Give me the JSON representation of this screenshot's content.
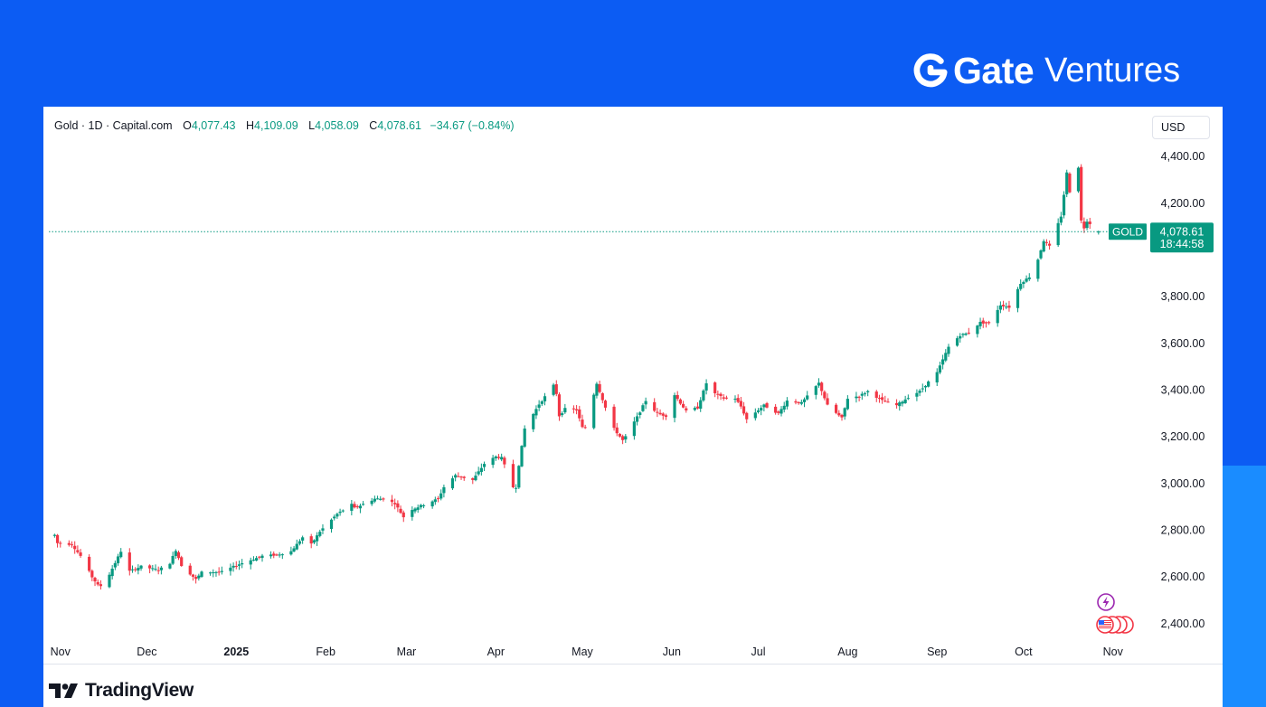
{
  "brand": {
    "name": "Gate",
    "suffix": "Ventures",
    "color": "#ffffff",
    "background": "#0c5cf3"
  },
  "legend": {
    "symbol": "Gold · 1D · Capital.com",
    "open_label": "O",
    "open": "4,077.43",
    "high_label": "H",
    "high": "4,109.09",
    "low_label": "L",
    "low": "4,058.09",
    "close_label": "C",
    "close": "4,078.61",
    "change": "−34.67 (−0.84%)"
  },
  "currency_button": "USD",
  "price_tag": {
    "label": "GOLD",
    "price": "4,078.61",
    "countdown": "18:44:58"
  },
  "logo": {
    "name": "TradingView"
  },
  "icons": {
    "flash": "lightning-event-icon",
    "flags": "us-economic-events-icon"
  },
  "colors": {
    "up": "#089981",
    "down": "#f23645",
    "event": "#9c27b0"
  },
  "chart_data": {
    "type": "candlestick",
    "title": "Gold · 1D · Capital.com",
    "ylim": [
      2330,
      4420
    ],
    "yticks": [
      {
        "value": 2400,
        "label": "2,400.00"
      },
      {
        "value": 2600,
        "label": "2,600.00"
      },
      {
        "value": 2800,
        "label": "2,800.00"
      },
      {
        "value": 3000,
        "label": "3,000.00"
      },
      {
        "value": 3200,
        "label": "3,200.00"
      },
      {
        "value": 3400,
        "label": "3,400.00"
      },
      {
        "value": 3600,
        "label": "3,600.00"
      },
      {
        "value": 3800,
        "label": "3,800.00"
      },
      {
        "value": 4200,
        "label": "4,200.00"
      },
      {
        "value": 4400,
        "label": "4,400.00"
      }
    ],
    "xticks": [
      {
        "date": "2024-11-01",
        "label": "Nov"
      },
      {
        "date": "2024-12-01",
        "label": "Dec"
      },
      {
        "date": "2025-01-01",
        "label": "2025",
        "bold": true
      },
      {
        "date": "2025-02-01",
        "label": "Feb"
      },
      {
        "date": "2025-03-01",
        "label": "Mar"
      },
      {
        "date": "2025-04-01",
        "label": "Apr"
      },
      {
        "date": "2025-05-01",
        "label": "May"
      },
      {
        "date": "2025-06-01",
        "label": "Jun"
      },
      {
        "date": "2025-07-01",
        "label": "Jul"
      },
      {
        "date": "2025-08-01",
        "label": "Aug"
      },
      {
        "date": "2025-09-01",
        "label": "Sep"
      },
      {
        "date": "2025-10-01",
        "label": "Oct"
      },
      {
        "date": "2025-11-01",
        "label": "Nov"
      }
    ],
    "last_price": 4078.61,
    "series_points": [
      [
        "2024-10-30",
        2780
      ],
      [
        "2024-10-31",
        2745
      ],
      [
        "2024-11-05",
        2740
      ],
      [
        "2024-11-08",
        2690
      ],
      [
        "2024-11-12",
        2600
      ],
      [
        "2024-11-14",
        2565
      ],
      [
        "2024-11-15",
        2562
      ],
      [
        "2024-11-18",
        2612
      ],
      [
        "2024-11-22",
        2710
      ],
      [
        "2024-11-25",
        2625
      ],
      [
        "2024-11-29",
        2645
      ],
      [
        "2024-12-05",
        2630
      ],
      [
        "2024-12-09",
        2660
      ],
      [
        "2024-12-11",
        2715
      ],
      [
        "2024-12-13",
        2650
      ],
      [
        "2024-12-18",
        2590
      ],
      [
        "2024-12-20",
        2620
      ],
      [
        "2024-12-27",
        2622
      ],
      [
        "2025-01-02",
        2655
      ],
      [
        "2025-01-10",
        2690
      ],
      [
        "2025-01-15",
        2695
      ],
      [
        "2025-01-20",
        2710
      ],
      [
        "2025-01-24",
        2770
      ],
      [
        "2025-01-27",
        2740
      ],
      [
        "2025-01-30",
        2795
      ],
      [
        "2025-02-05",
        2870
      ],
      [
        "2025-02-10",
        2910
      ],
      [
        "2025-02-11",
        2895
      ],
      [
        "2025-02-18",
        2935
      ],
      [
        "2025-02-21",
        2935
      ],
      [
        "2025-02-25",
        2915
      ],
      [
        "2025-02-28",
        2857
      ],
      [
        "2025-03-03",
        2890
      ],
      [
        "2025-03-07",
        2910
      ],
      [
        "2025-03-12",
        2935
      ],
      [
        "2025-03-14",
        2985
      ],
      [
        "2025-03-18",
        3035
      ],
      [
        "2025-03-24",
        3015
      ],
      [
        "2025-03-28",
        3085
      ],
      [
        "2025-04-01",
        3115
      ],
      [
        "2025-04-03",
        3110
      ],
      [
        "2025-04-07",
        2985
      ],
      [
        "2025-04-08",
        2985
      ],
      [
        "2025-04-09",
        3080
      ],
      [
        "2025-04-11",
        3235
      ],
      [
        "2025-04-16",
        3340
      ],
      [
        "2025-04-21",
        3420
      ],
      [
        "2025-04-22",
        3385
      ],
      [
        "2025-04-23",
        3290
      ],
      [
        "2025-04-25",
        3320
      ],
      [
        "2025-04-29",
        3315
      ],
      [
        "2025-05-01",
        3240
      ],
      [
        "2025-05-02",
        3240
      ],
      [
        "2025-05-06",
        3430
      ],
      [
        "2025-05-09",
        3325
      ],
      [
        "2025-05-12",
        3235
      ],
      [
        "2025-05-15",
        3185
      ],
      [
        "2025-05-16",
        3200
      ],
      [
        "2025-05-20",
        3285
      ],
      [
        "2025-05-23",
        3355
      ],
      [
        "2025-05-27",
        3300
      ],
      [
        "2025-05-30",
        3290
      ],
      [
        "2025-06-02",
        3380
      ],
      [
        "2025-06-06",
        3310
      ],
      [
        "2025-06-10",
        3325
      ],
      [
        "2025-06-13",
        3430
      ],
      [
        "2025-06-16",
        3385
      ],
      [
        "2025-06-19",
        3365
      ],
      [
        "2025-06-23",
        3365
      ],
      [
        "2025-06-25",
        3330
      ],
      [
        "2025-06-27",
        3275
      ],
      [
        "2025-06-30",
        3305
      ],
      [
        "2025-07-03",
        3335
      ],
      [
        "2025-07-08",
        3300
      ],
      [
        "2025-07-11",
        3355
      ],
      [
        "2025-07-16",
        3345
      ],
      [
        "2025-07-22",
        3430
      ],
      [
        "2025-07-25",
        3335
      ],
      [
        "2025-07-30",
        3280
      ],
      [
        "2025-08-01",
        3365
      ],
      [
        "2025-08-05",
        3375
      ],
      [
        "2025-08-08",
        3395
      ],
      [
        "2025-08-13",
        3355
      ],
      [
        "2025-08-18",
        3335
      ],
      [
        "2025-08-22",
        3370
      ],
      [
        "2025-08-26",
        3395
      ],
      [
        "2025-09-01",
        3475
      ],
      [
        "2025-09-05",
        3585
      ],
      [
        "2025-09-09",
        3635
      ],
      [
        "2025-09-12",
        3645
      ],
      [
        "2025-09-16",
        3690
      ],
      [
        "2025-09-19",
        3685
      ],
      [
        "2025-09-23",
        3765
      ],
      [
        "2025-09-26",
        3755
      ],
      [
        "2025-09-30",
        3858
      ],
      [
        "2025-10-03",
        3885
      ],
      [
        "2025-10-06",
        3960
      ],
      [
        "2025-10-08",
        4040
      ],
      [
        "2025-10-10",
        4015
      ],
      [
        "2025-10-14",
        4145
      ],
      [
        "2025-10-16",
        4330
      ],
      [
        "2025-10-17",
        4250
      ],
      [
        "2025-10-20",
        4355
      ],
      [
        "2025-10-21",
        4125
      ],
      [
        "2025-10-22",
        4095
      ],
      [
        "2025-10-23",
        4125
      ],
      [
        "2025-10-24",
        4113
      ],
      [
        "2025-10-27",
        4078.61
      ]
    ]
  }
}
